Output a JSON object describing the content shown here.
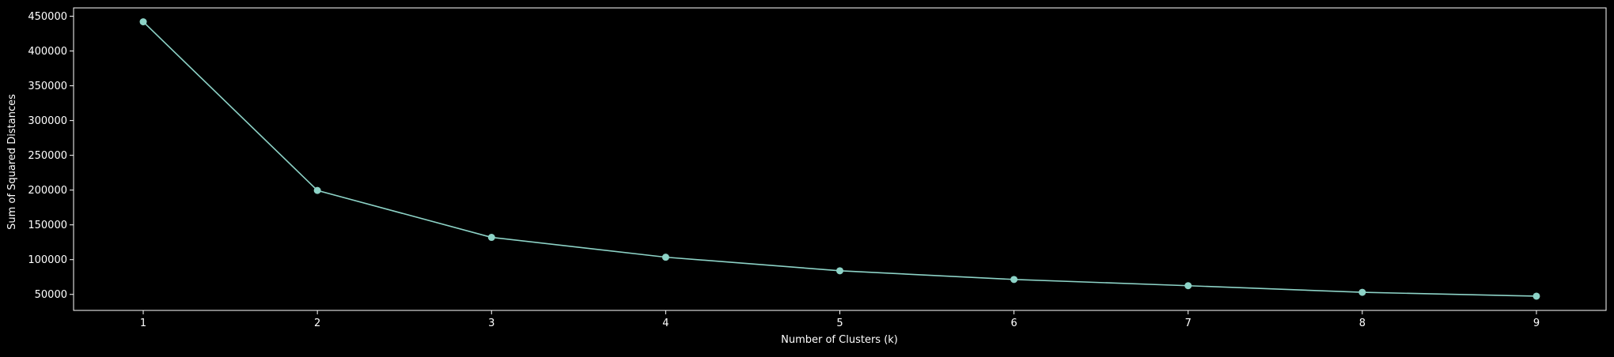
{
  "chart_data": {
    "type": "line",
    "title": "",
    "xlabel": "Number of Clusters (k)",
    "ylabel": "Sum of Squared Distances",
    "x": [
      1,
      2,
      3,
      4,
      5,
      6,
      7,
      8,
      9
    ],
    "series": [
      {
        "values": [
          442000,
          199500,
          132000,
          103500,
          84000,
          71500,
          62500,
          53000,
          47500
        ]
      }
    ],
    "xticks": [
      1,
      2,
      3,
      4,
      5,
      6,
      7,
      8,
      9
    ],
    "xtick_labels": [
      "1",
      "2",
      "3",
      "4",
      "5",
      "6",
      "7",
      "8",
      "9"
    ],
    "yticks": [
      50000,
      100000,
      150000,
      200000,
      250000,
      300000,
      350000,
      400000,
      450000
    ],
    "ytick_labels": [
      "50000",
      "100000",
      "150000",
      "200000",
      "250000",
      "300000",
      "350000",
      "400000",
      "450000"
    ],
    "xlim": [
      0.6,
      9.4
    ],
    "ylim": [
      27000,
      462000
    ],
    "grid": false,
    "marker": "circle",
    "colors": {
      "background": "#000000",
      "axes": "#ffffff",
      "text": "#ffffff",
      "line": "#8dd3c7"
    }
  }
}
